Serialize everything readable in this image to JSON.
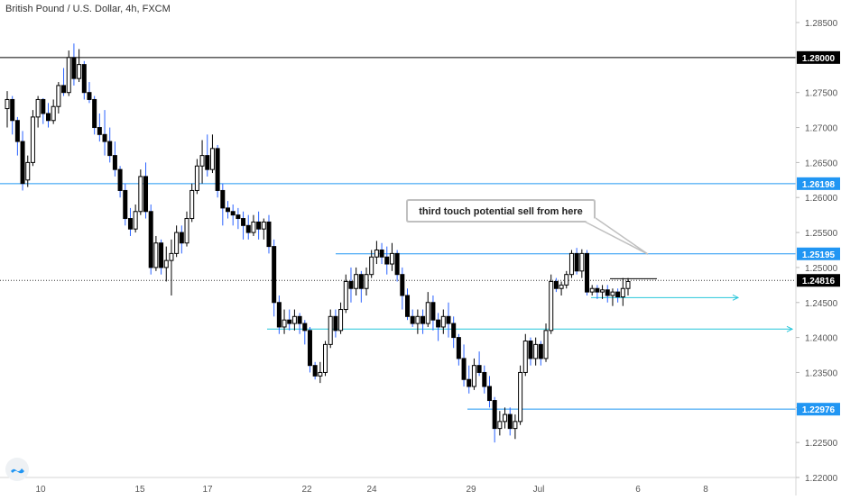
{
  "header": {
    "title": "British Pound / U.S. Dollar, 4h, FXCM"
  },
  "annotation": {
    "text": "third touch potential sell from here"
  },
  "colors": {
    "candle": "#000000",
    "wick_down": "#2962ff",
    "level_line": "#2196f3",
    "support_line": "#26c6da",
    "resistance_line": "#000000",
    "price_tag_bg": "#2196f3",
    "price_tag_dark": "#000000",
    "axis_text": "#555555"
  },
  "chart_data": {
    "type": "candlestick",
    "symbol": "British Pound / U.S. Dollar",
    "timeframe": "4h",
    "source": "FXCM",
    "y_axis": {
      "ticks": [
        "1.28500",
        "1.28000",
        "1.27500",
        "1.27000",
        "1.26500",
        "1.26000",
        "1.25500",
        "1.25000",
        "1.24500",
        "1.24000",
        "1.23500",
        "1.23000",
        "1.22500",
        "1.22000"
      ],
      "ylim": [
        1.2195,
        1.2885
      ]
    },
    "x_axis": {
      "ticks": [
        "10",
        "15",
        "17",
        "22",
        "24",
        "29",
        "Jul",
        "6",
        "8"
      ]
    },
    "price_tags": [
      {
        "label": "1.28000",
        "value": 1.28,
        "style": "dark"
      },
      {
        "label": "1.26198",
        "value": 1.26198,
        "style": "blue"
      },
      {
        "label": "1.25195",
        "value": 1.25195,
        "style": "blue"
      },
      {
        "label": "1.24816",
        "value": 1.24816,
        "style": "dark"
      },
      {
        "label": "1.22976",
        "value": 1.22976,
        "style": "blue"
      }
    ],
    "horizontal_lines": [
      {
        "value": 1.28,
        "style": "solid-dark",
        "extent": "full"
      },
      {
        "value": 1.26198,
        "style": "solid-blue",
        "extent": "full"
      },
      {
        "value": 1.25195,
        "style": "solid-blue",
        "extent": "from-jun-22"
      },
      {
        "value": 1.24816,
        "style": "dotted-dark",
        "extent": "full"
      },
      {
        "value": 1.22976,
        "style": "solid-blue",
        "extent": "from-jun-28"
      },
      {
        "value": 1.2412,
        "style": "ray-cyan",
        "extent": "from-jun-19"
      },
      {
        "value": 1.2457,
        "style": "ray-cyan",
        "extent": "short-jul-3"
      }
    ],
    "candles": [
      [
        1.2727,
        1.2752,
        1.27,
        1.274
      ],
      [
        1.274,
        1.2745,
        1.269,
        1.271
      ],
      [
        1.271,
        1.2715,
        1.266,
        1.268
      ],
      [
        1.268,
        1.2695,
        1.261,
        1.262
      ],
      [
        1.2625,
        1.266,
        1.2615,
        1.265
      ],
      [
        1.265,
        1.2725,
        1.2645,
        1.2715
      ],
      [
        1.2715,
        1.2745,
        1.27,
        1.274
      ],
      [
        1.274,
        1.2742,
        1.2705,
        1.272
      ],
      [
        1.272,
        1.2735,
        1.27,
        1.271
      ],
      [
        1.271,
        1.274,
        1.2705,
        1.273
      ],
      [
        1.273,
        1.2765,
        1.272,
        1.276
      ],
      [
        1.276,
        1.2785,
        1.2745,
        1.275
      ],
      [
        1.275,
        1.281,
        1.2745,
        1.28
      ],
      [
        1.28,
        1.282,
        1.276,
        1.277
      ],
      [
        1.277,
        1.2812,
        1.2765,
        1.279
      ],
      [
        1.279,
        1.2795,
        1.274,
        1.275
      ],
      [
        1.275,
        1.2765,
        1.2735,
        1.274
      ],
      [
        1.274,
        1.2745,
        1.269,
        1.27
      ],
      [
        1.27,
        1.272,
        1.268,
        1.269
      ],
      [
        1.269,
        1.2725,
        1.266,
        1.268
      ],
      [
        1.268,
        1.27,
        1.265,
        1.266
      ],
      [
        1.266,
        1.268,
        1.263,
        1.264
      ],
      [
        1.264,
        1.2645,
        1.26,
        1.261
      ],
      [
        1.261,
        1.262,
        1.256,
        1.257
      ],
      [
        1.257,
        1.2585,
        1.2545,
        1.2555
      ],
      [
        1.2555,
        1.259,
        1.255,
        1.258
      ],
      [
        1.258,
        1.264,
        1.2575,
        1.263
      ],
      [
        1.263,
        1.265,
        1.257,
        1.258
      ],
      [
        1.258,
        1.259,
        1.249,
        1.25
      ],
      [
        1.25,
        1.2545,
        1.2495,
        1.2535
      ],
      [
        1.2535,
        1.254,
        1.249,
        1.25
      ],
      [
        1.25,
        1.253,
        1.248,
        1.251
      ],
      [
        1.251,
        1.254,
        1.246,
        1.252
      ],
      [
        1.252,
        1.256,
        1.2515,
        1.255
      ],
      [
        1.255,
        1.256,
        1.252,
        1.2535
      ],
      [
        1.2535,
        1.258,
        1.253,
        1.257
      ],
      [
        1.257,
        1.262,
        1.2565,
        1.261
      ],
      [
        1.261,
        1.2655,
        1.2605,
        1.2645
      ],
      [
        1.2645,
        1.2682,
        1.262,
        1.266
      ],
      [
        1.266,
        1.269,
        1.263,
        1.264
      ],
      [
        1.264,
        1.269,
        1.2635,
        1.267
      ],
      [
        1.267,
        1.2675,
        1.26,
        1.261
      ],
      [
        1.261,
        1.262,
        1.256,
        1.2585
      ],
      [
        1.2585,
        1.2595,
        1.257,
        1.258
      ],
      [
        1.258,
        1.259,
        1.256,
        1.2575
      ],
      [
        1.2575,
        1.2585,
        1.2555,
        1.257
      ],
      [
        1.257,
        1.258,
        1.254,
        1.256
      ],
      [
        1.256,
        1.2575,
        1.254,
        1.255
      ],
      [
        1.255,
        1.2575,
        1.2545,
        1.2565
      ],
      [
        1.2565,
        1.258,
        1.254,
        1.2555
      ],
      [
        1.2555,
        1.257,
        1.254,
        1.2565
      ],
      [
        1.2565,
        1.2575,
        1.252,
        1.253
      ],
      [
        1.253,
        1.254,
        1.243,
        1.245
      ],
      [
        1.245,
        1.246,
        1.2405,
        1.2415
      ],
      [
        1.2415,
        1.244,
        1.2405,
        1.2425
      ],
      [
        1.2425,
        1.244,
        1.241,
        1.242
      ],
      [
        1.242,
        1.244,
        1.241,
        1.243
      ],
      [
        1.243,
        1.2435,
        1.2405,
        1.242
      ],
      [
        1.242,
        1.2425,
        1.239,
        1.241
      ],
      [
        1.241,
        1.2415,
        1.235,
        1.236
      ],
      [
        1.236,
        1.2365,
        1.234,
        1.2345
      ],
      [
        1.2345,
        1.2365,
        1.2335,
        1.235
      ],
      [
        1.235,
        1.2395,
        1.2345,
        1.239
      ],
      [
        1.239,
        1.244,
        1.2385,
        1.243
      ],
      [
        1.243,
        1.244,
        1.24,
        1.241
      ],
      [
        1.241,
        1.245,
        1.2405,
        1.244
      ],
      [
        1.244,
        1.249,
        1.2435,
        1.248
      ],
      [
        1.248,
        1.25,
        1.245,
        1.247
      ],
      [
        1.247,
        1.25,
        1.246,
        1.249
      ],
      [
        1.249,
        1.2495,
        1.245,
        1.247
      ],
      [
        1.247,
        1.25,
        1.246,
        1.249
      ],
      [
        1.249,
        1.2525,
        1.2485,
        1.2515
      ],
      [
        1.2515,
        1.2538,
        1.2505,
        1.2525
      ],
      [
        1.2525,
        1.2535,
        1.2505,
        1.2515
      ],
      [
        1.2515,
        1.253,
        1.249,
        1.2505
      ],
      [
        1.2505,
        1.2535,
        1.2495,
        1.252
      ],
      [
        1.252,
        1.2525,
        1.248,
        1.249
      ],
      [
        1.249,
        1.25,
        1.244,
        1.246
      ],
      [
        1.246,
        1.247,
        1.2425,
        1.243
      ],
      [
        1.243,
        1.244,
        1.2415,
        1.242
      ],
      [
        1.242,
        1.244,
        1.2405,
        1.243
      ],
      [
        1.243,
        1.244,
        1.2405,
        1.242
      ],
      [
        1.242,
        1.2465,
        1.2415,
        1.245
      ],
      [
        1.245,
        1.246,
        1.241,
        1.2425
      ],
      [
        1.2425,
        1.2435,
        1.2395,
        1.2415
      ],
      [
        1.2415,
        1.244,
        1.2405,
        1.243
      ],
      [
        1.243,
        1.245,
        1.24,
        1.242
      ],
      [
        1.242,
        1.243,
        1.2385,
        1.24
      ],
      [
        1.24,
        1.2405,
        1.236,
        1.237
      ],
      [
        1.237,
        1.239,
        1.233,
        1.234
      ],
      [
        1.234,
        1.236,
        1.232,
        1.233
      ],
      [
        1.233,
        1.237,
        1.2325,
        1.236
      ],
      [
        1.236,
        1.238,
        1.2345,
        1.235
      ],
      [
        1.235,
        1.236,
        1.232,
        1.233
      ],
      [
        1.233,
        1.2345,
        1.23,
        1.231
      ],
      [
        1.231,
        1.2315,
        1.225,
        1.227
      ],
      [
        1.227,
        1.2295,
        1.226,
        1.228
      ],
      [
        1.228,
        1.23,
        1.227,
        1.229
      ],
      [
        1.229,
        1.23,
        1.226,
        1.227
      ],
      [
        1.227,
        1.229,
        1.2255,
        1.228
      ],
      [
        1.228,
        1.236,
        1.2275,
        1.235
      ],
      [
        1.235,
        1.2405,
        1.2345,
        1.2395
      ],
      [
        1.2395,
        1.24,
        1.236,
        1.237
      ],
      [
        1.237,
        1.24,
        1.236,
        1.239
      ],
      [
        1.239,
        1.2395,
        1.236,
        1.237
      ],
      [
        1.237,
        1.242,
        1.2365,
        1.241
      ],
      [
        1.241,
        1.249,
        1.2405,
        1.248
      ],
      [
        1.248,
        1.2485,
        1.2465,
        1.247
      ],
      [
        1.247,
        1.248,
        1.246,
        1.2475
      ],
      [
        1.2475,
        1.2495,
        1.247,
        1.249
      ],
      [
        1.249,
        1.2525,
        1.2485,
        1.252
      ],
      [
        1.252,
        1.2528,
        1.249,
        1.2495
      ],
      [
        1.2495,
        1.2526,
        1.2485,
        1.252
      ],
      [
        1.252,
        1.2525,
        1.246,
        1.2465
      ],
      [
        1.2465,
        1.2475,
        1.246,
        1.247
      ],
      [
        1.247,
        1.2475,
        1.2455,
        1.2465
      ],
      [
        1.2465,
        1.2475,
        1.2455,
        1.2468
      ],
      [
        1.2468,
        1.2475,
        1.245,
        1.246
      ],
      [
        1.246,
        1.247,
        1.2445,
        1.2465
      ],
      [
        1.2465,
        1.247,
        1.245,
        1.2458
      ],
      [
        1.2458,
        1.2485,
        1.2445,
        1.247
      ],
      [
        1.247,
        1.2485,
        1.246,
        1.248
      ]
    ]
  }
}
